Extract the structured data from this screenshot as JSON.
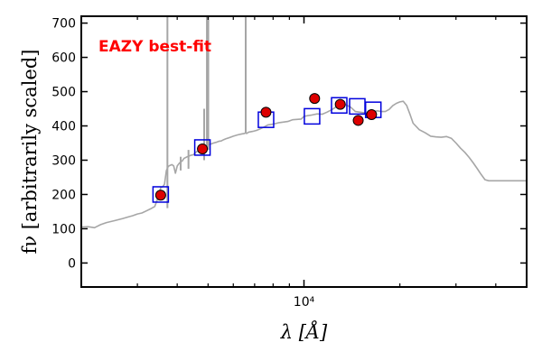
{
  "chart_data": {
    "type": "scatter",
    "title": "",
    "annotation": "EAZY best-fit",
    "annotation_color": "#ff0000",
    "xlabel": "λ [Å]",
    "ylabel": "fν [arbitrarily scaled]",
    "x_scale": "log",
    "xlim": [
      2000,
      50000
    ],
    "ylim": [
      -70,
      720
    ],
    "grid": false,
    "y_ticks": [
      0,
      100,
      200,
      300,
      400,
      500,
      600,
      700
    ],
    "x_major_ticks": [
      10000
    ],
    "x_major_tick_labels": [
      "10⁴"
    ],
    "x_minor_ticks": [
      3000,
      4000,
      5000,
      6000,
      7000,
      8000,
      9000,
      20000,
      30000,
      40000
    ],
    "colors": {
      "sed_line": "#a6a6a6",
      "model_photometry": "#0000dd",
      "observed_photometry_fill": "#dd0000",
      "observed_photometry_edge": "#000000"
    },
    "series": [
      {
        "kind": "line",
        "x": [
          2000,
          2100,
          2200,
          2300,
          2400,
          2500,
          2600,
          2700,
          2800,
          2900,
          3000,
          3100,
          3200,
          3300,
          3400,
          3500,
          3550,
          3600,
          3650,
          3700,
          3750,
          3800,
          3850,
          3900,
          3950,
          4000,
          4050,
          4100,
          4150,
          4200,
          4300,
          4400,
          4500,
          4600,
          4700,
          4750,
          4800,
          4850,
          4900,
          5000,
          5100,
          5200,
          5300,
          5400,
          5500,
          5600,
          5700,
          5800,
          6000,
          6200,
          6400,
          6500,
          6560,
          6600,
          6700,
          6900,
          7100,
          7300,
          7500,
          7700,
          8000,
          8300,
          8600,
          8900,
          9200,
          9500,
          9800,
          10000,
          10300,
          10600,
          11000,
          11400,
          11800,
          12200,
          12600,
          13000,
          13500,
          14000,
          14500,
          15000,
          15500,
          16000,
          16500,
          17000,
          17500,
          18000,
          18500,
          19000,
          19500,
          20000,
          20500,
          21000,
          21500,
          22000,
          23000,
          24000,
          25000,
          26000,
          27000,
          28000,
          29000,
          30000,
          31000,
          32000,
          33000,
          34000,
          35000,
          36000,
          37000,
          38000,
          39000,
          40000,
          42000,
          44000,
          46000,
          48000,
          50000
        ],
        "y": [
          105,
          106,
          103,
          112,
          118,
          122,
          126,
          130,
          134,
          138,
          143,
          146,
          152,
          158,
          165,
          196,
          220,
          222,
          230,
          270,
          282,
          285,
          287,
          283,
          262,
          283,
          290,
          295,
          298,
          305,
          310,
          314,
          316,
          325,
          328,
          326,
          334,
          337,
          340,
          345,
          347,
          350,
          352,
          355,
          356,
          360,
          363,
          365,
          370,
          374,
          377,
          378,
          380,
          378,
          382,
          384,
          387,
          392,
          397,
          403,
          405,
          409,
          411,
          413,
          418,
          419,
          420,
          428,
          430,
          432,
          435,
          434,
          440,
          447,
          455,
          460,
          462,
          455,
          442,
          440,
          438,
          436,
          442,
          444,
          442,
          442,
          448,
          459,
          466,
          470,
          472,
          460,
          435,
          408,
          389,
          380,
          370,
          368,
          367,
          369,
          364,
          350,
          335,
          323,
          308,
          292,
          275,
          258,
          243,
          240,
          240,
          240,
          240,
          240,
          240,
          240,
          240
        ]
      },
      {
        "kind": "emission_lines",
        "x": [
          3727,
          4102,
          4340,
          4861,
          4959,
          5007,
          6563
        ],
        "peak_y": [
          720,
          310,
          330,
          450,
          720,
          720,
          720
        ],
        "base_y": [
          160,
          270,
          275,
          300,
          330,
          330,
          378
        ]
      },
      {
        "kind": "model_photometry",
        "marker": "open-square",
        "x": [
          3550,
          4800,
          7600,
          10600,
          12900,
          14700,
          16500
        ],
        "y": [
          200,
          337,
          418,
          428,
          460,
          457,
          447
        ]
      },
      {
        "kind": "observed_photometry",
        "marker": "filled-circle",
        "x": [
          3550,
          4800,
          7600,
          10800,
          13000,
          14800,
          16300
        ],
        "y": [
          198,
          333,
          440,
          480,
          463,
          416,
          433
        ]
      }
    ]
  }
}
